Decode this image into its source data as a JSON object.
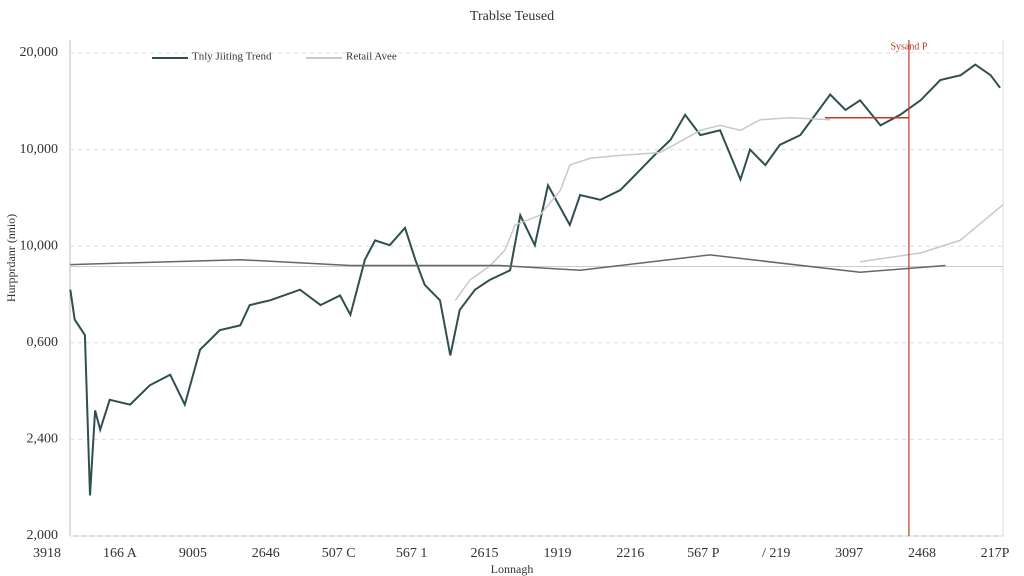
{
  "chart_data": {
    "type": "line",
    "title": "Trablse Teused",
    "x_label": "Lonnagh",
    "y_label": "Hurpprdanr (nnio)",
    "xlim": [
      0,
      13.11
    ],
    "ylim": [
      0,
      5
    ],
    "xticks": [
      {
        "value": 0,
        "label": "3918"
      },
      {
        "value": 1,
        "label": "166 A"
      },
      {
        "value": 2,
        "label": "9005"
      },
      {
        "value": 3,
        "label": "2646"
      },
      {
        "value": 4,
        "label": "507 C"
      },
      {
        "value": 5,
        "label": "567 1"
      },
      {
        "value": 6,
        "label": "2615"
      },
      {
        "value": 7,
        "label": "1919"
      },
      {
        "value": 8,
        "label": "2216"
      },
      {
        "value": 9,
        "label": "567 P"
      },
      {
        "value": 10,
        "label": "/ 219"
      },
      {
        "value": 11,
        "label": "3097"
      },
      {
        "value": 12,
        "label": "2468"
      },
      {
        "value": 13,
        "label": "217P"
      }
    ],
    "yticks": [
      {
        "value": 0,
        "label": "2,000"
      },
      {
        "value": 1,
        "label": "2,400"
      },
      {
        "value": 2,
        "label": "0,600"
      },
      {
        "value": 3,
        "label": "10,000"
      },
      {
        "value": 4,
        "label": "10,000"
      },
      {
        "value": 5,
        "label": "20,000"
      }
    ],
    "grid": true,
    "hline": 2.79,
    "vline": 11.82,
    "vline_label": "Sysand P",
    "red_segment": {
      "x": [
        10.67,
        11.82
      ],
      "y": 4.33
    },
    "series": [
      {
        "name": "Tnly Jiiting Trend",
        "color": "#2f4f4f",
        "x": [
          0.32,
          0.38,
          0.52,
          0.59,
          0.66,
          0.73,
          0.86,
          1.14,
          1.41,
          1.69,
          1.89,
          2.1,
          2.37,
          2.65,
          2.78,
          3.06,
          3.47,
          3.75,
          4.02,
          4.16,
          4.36,
          4.5,
          4.7,
          4.91,
          5.05,
          5.18,
          5.39,
          5.53,
          5.66,
          5.87,
          6.07,
          6.35,
          6.49,
          6.69,
          6.87,
          7.17,
          7.31,
          7.59,
          7.86,
          8.07,
          8.34,
          8.55,
          8.75,
          8.96,
          9.23,
          9.51,
          9.64,
          9.85,
          10.05,
          10.33,
          10.74,
          10.95,
          11.15,
          11.43,
          11.7,
          11.98,
          12.25,
          12.53,
          12.73,
          12.94,
          13.07
        ],
        "values": [
          2.55,
          2.24,
          2.08,
          0.42,
          1.3,
          1.1,
          1.41,
          1.36,
          1.56,
          1.67,
          1.36,
          1.93,
          2.13,
          2.18,
          2.39,
          2.44,
          2.55,
          2.39,
          2.49,
          2.29,
          2.86,
          3.06,
          3.01,
          3.19,
          2.86,
          2.6,
          2.44,
          1.87,
          2.34,
          2.55,
          2.65,
          2.75,
          3.32,
          3.01,
          3.63,
          3.22,
          3.53,
          3.48,
          3.58,
          3.74,
          3.95,
          4.1,
          4.36,
          4.15,
          4.2,
          3.69,
          4.0,
          3.84,
          4.05,
          4.15,
          4.57,
          4.41,
          4.51,
          4.25,
          4.36,
          4.51,
          4.72,
          4.77,
          4.88,
          4.77,
          4.64
        ]
      },
      {
        "name": "Retail Avee",
        "color": "#c8c8c8",
        "x": [
          5.6,
          5.8,
          6.08,
          6.28,
          6.42,
          6.76,
          7.04,
          7.17,
          7.45,
          7.86,
          8.41,
          8.96,
          9.23,
          9.51,
          9.78,
          10.19,
          10.74,
          10.95,
          11.15,
          11.98,
          12.52,
          13.11
        ],
        "values": [
          2.44,
          2.65,
          2.8,
          2.96,
          3.22,
          3.32,
          3.58,
          3.84,
          3.91,
          3.94,
          3.97,
          4.2,
          4.25,
          4.2,
          4.31,
          4.33,
          4.31,
          null,
          2.84,
          2.93,
          3.06,
          3.43
        ]
      },
      {
        "color": "#666666",
        "x": [
          0.32,
          2.65,
          4.16,
          6.21,
          7.31,
          9.09,
          11.15,
          12.32
        ],
        "values": [
          2.81,
          2.86,
          2.8,
          2.8,
          2.75,
          2.91,
          2.73,
          2.8
        ]
      }
    ]
  }
}
